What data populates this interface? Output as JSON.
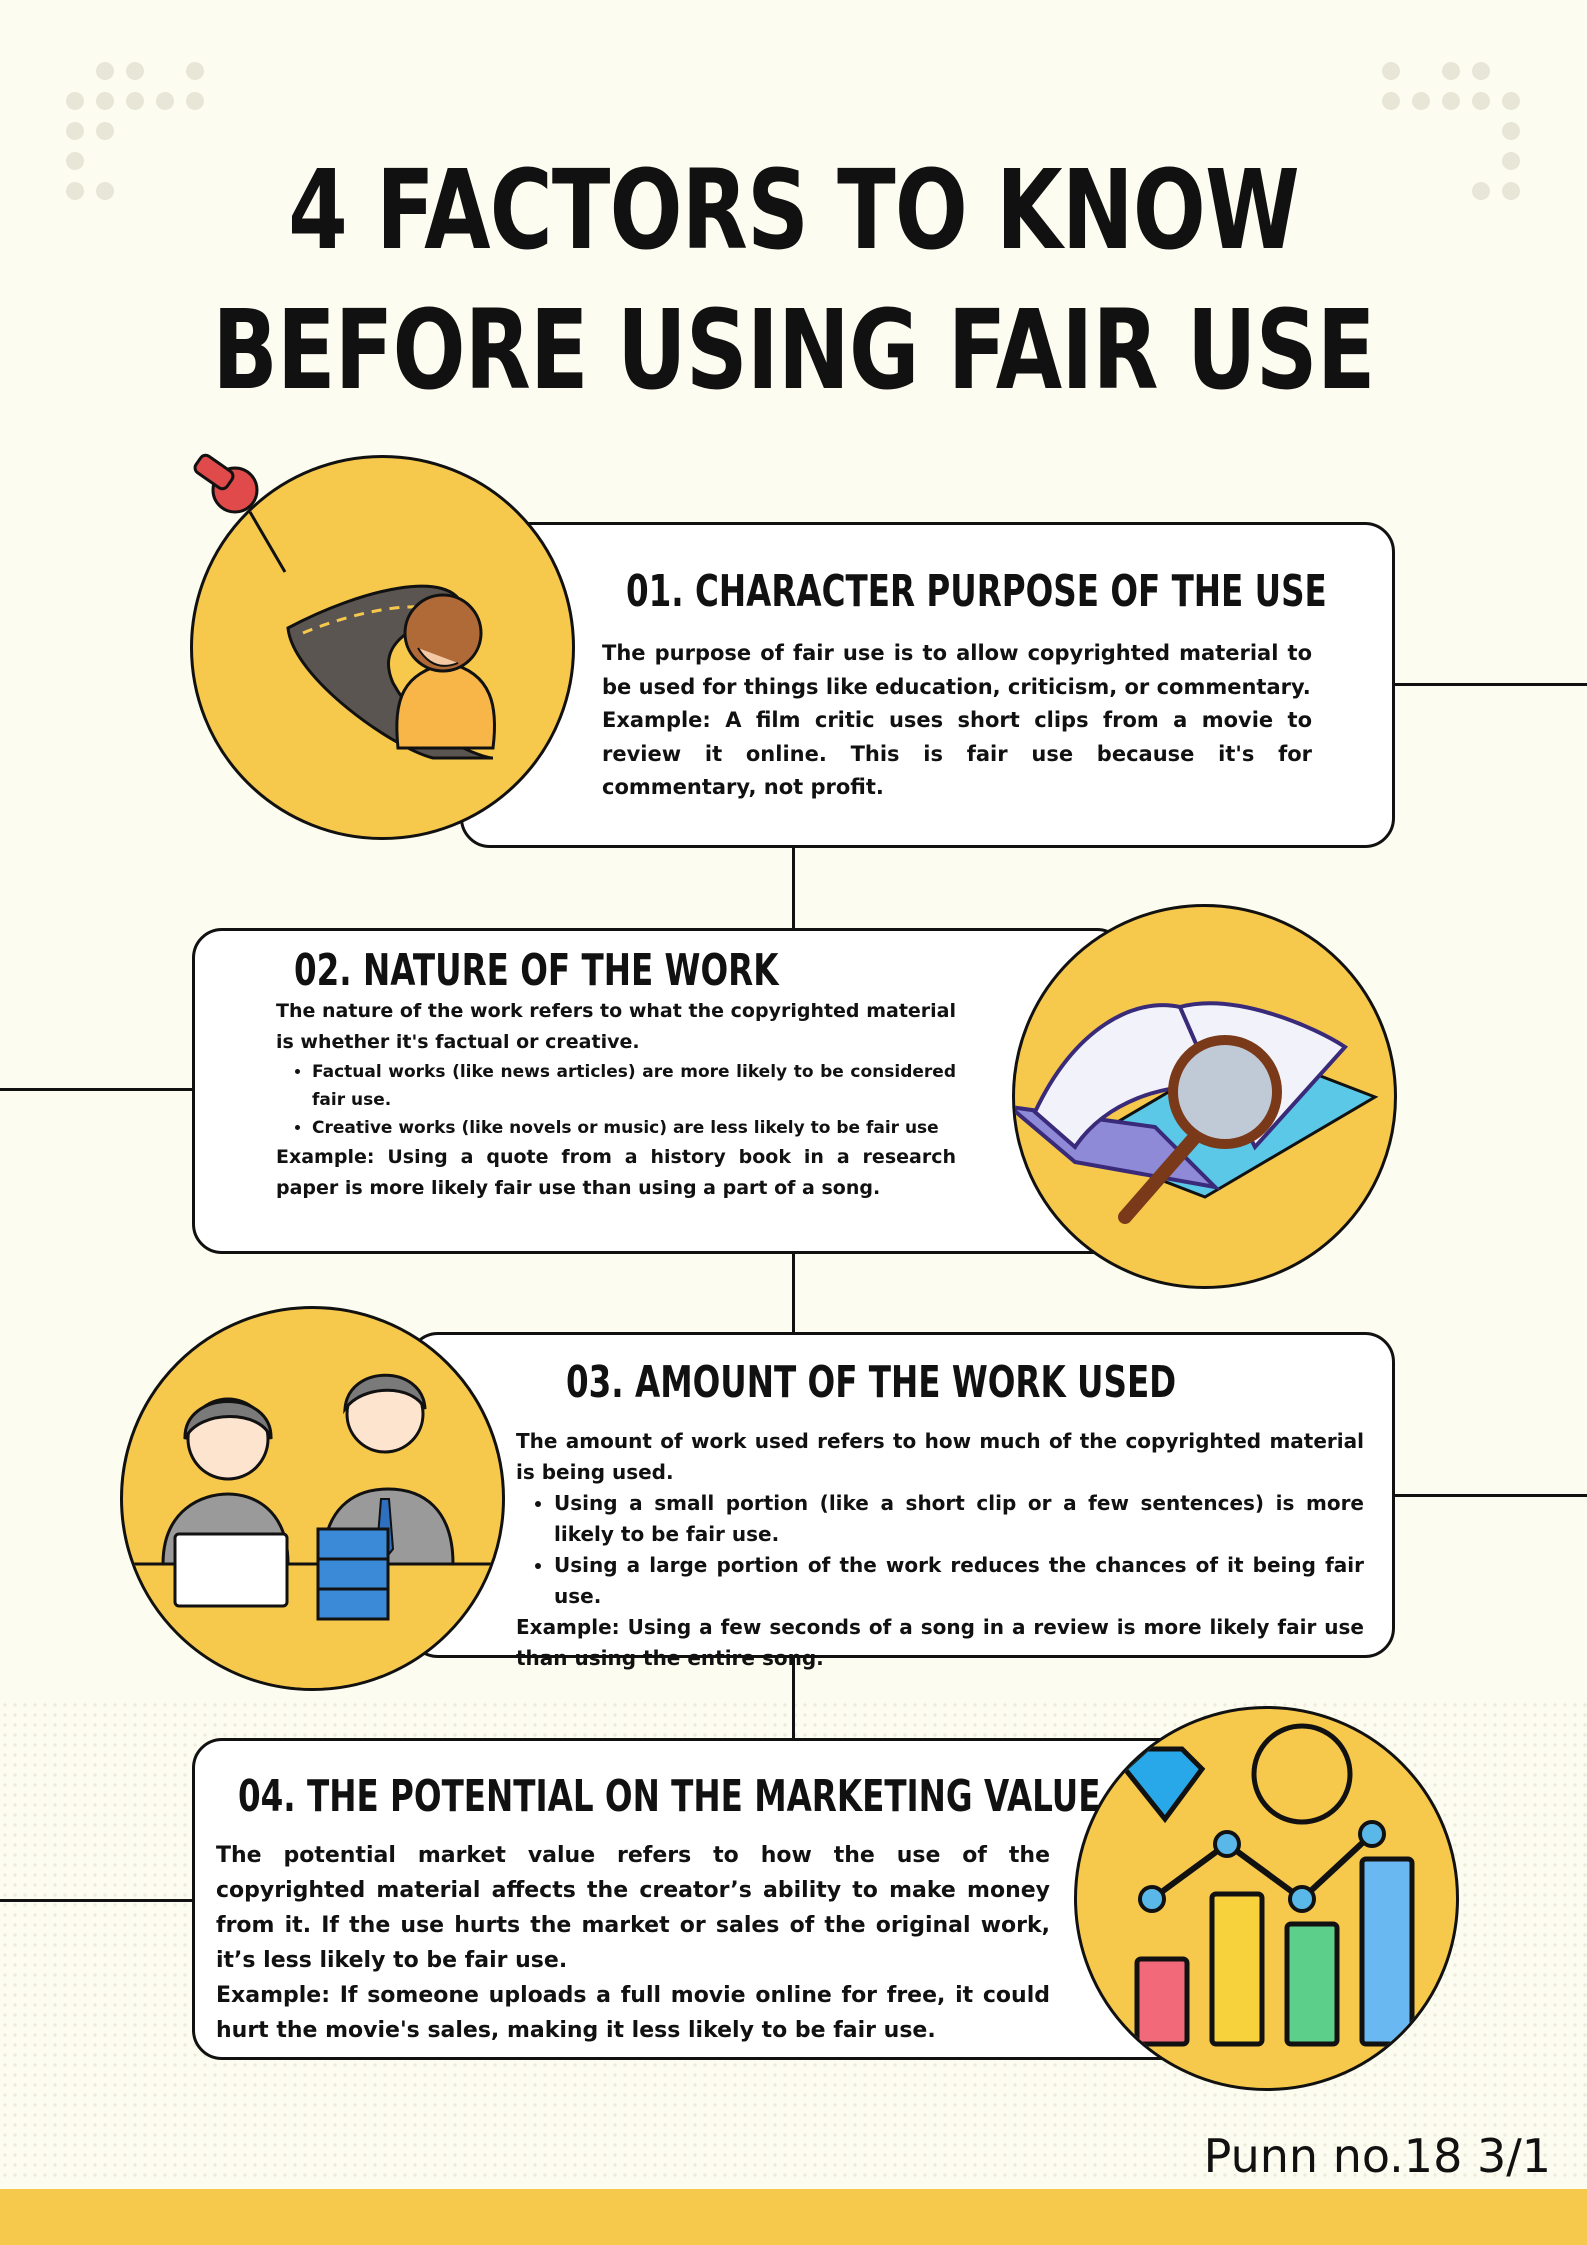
{
  "title": {
    "line1": "4 FACTORS TO KNOW",
    "line2": "BEFORE USING FAIR USE"
  },
  "factors": [
    {
      "heading": "01.  CHARACTER PURPOSE OF THE USE",
      "para1": "The purpose of fair use is to allow copyrighted material to be used for things like education, criticism, or commentary.",
      "example": "Example: A film critic uses short clips from a movie to review it online. This is fair use because it's for commentary, not profit."
    },
    {
      "heading": "02. NATURE OF THE WORK",
      "para1": "The nature of the work refers to what the copyrighted material is whether it's factual or creative.",
      "bullets": [
        "Factual works (like news articles) are more likely to be considered fair use.",
        "Creative works (like novels or music) are less likely to be fair use"
      ],
      "example": "Example: Using a quote from a history book in a research paper is more likely fair use than using a part of a song."
    },
    {
      "heading": "03. AMOUNT OF THE WORK USED",
      "para1": "The amount of work used refers to how much of the copyrighted material is being used.",
      "bullets": [
        "Using a small portion (like a short clip or a few sentences) is more likely to be fair use.",
        "Using a large portion of the work reduces the chances of it being fair use."
      ],
      "example": "Example: Using a few seconds of a song in a review is more likely fair use than using the entire song."
    },
    {
      "heading": "04. THE POTENTIAL ON THE MARKETING VALUE",
      "para1": "The potential market value refers to how the use of the copyrighted material affects the creator’s ability to make money from it. If the use hurts the market or sales of the original work, it’s less likely to be fair use.",
      "example": "Example: If someone uploads a full movie online for free, it could hurt the movie's sales, making it less likely to be fair use."
    }
  ],
  "footer": {
    "credit": "Punn no.18 3/1"
  },
  "colors": {
    "accent": "#f6c84c",
    "background": "#fdfcf0",
    "ink": "#111111"
  },
  "icons": [
    "pushpin-icon",
    "road-person-illustration",
    "book-magnifier-illustration",
    "office-workers-illustration",
    "market-chart-illustration"
  ]
}
